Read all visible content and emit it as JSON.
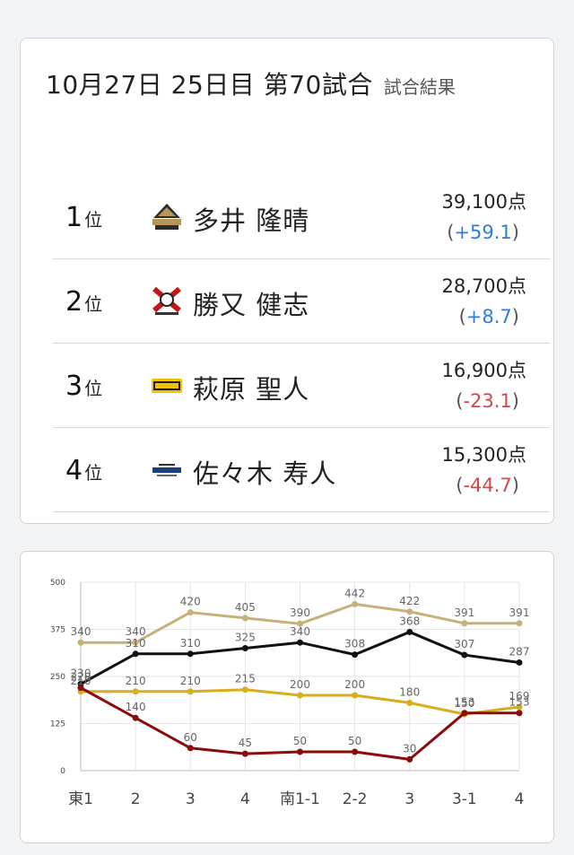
{
  "header": {
    "title": "10月27日  25日目  第70試合",
    "subtitle": "試合結果"
  },
  "rank_unit": "位",
  "results": [
    {
      "rank": "1",
      "name": "多井 隆晴",
      "points": "39,100点",
      "diff_open": "(",
      "diff": "+59.1",
      "diff_close": ")",
      "sign": "pos",
      "team_logo": "abemas-logo-icon"
    },
    {
      "rank": "2",
      "name": "勝又 健志",
      "points": "28,700点",
      "diff_open": "(",
      "diff": "+8.7",
      "diff_close": ")",
      "sign": "pos",
      "team_logo": "fu-rinkazan-logo-icon"
    },
    {
      "rank": "3",
      "name": "萩原 聖人",
      "points": "16,900点",
      "diff_open": "(",
      "diff": "-23.1",
      "diff_close": ")",
      "sign": "neg",
      "team_logo": "raiden-logo-icon"
    },
    {
      "rank": "4",
      "name": "佐々木 寿人",
      "points": "15,300点",
      "diff_open": "(",
      "diff": "-44.7",
      "diff_close": ")",
      "sign": "neg",
      "team_logo": "konami-logo-icon"
    }
  ],
  "chart_data": {
    "type": "line",
    "categories": [
      "東1",
      "2",
      "3",
      "4",
      "南1-1",
      "2-2",
      "3",
      "3-1",
      "4"
    ],
    "ylim": [
      0,
      500
    ],
    "yticks": [
      0,
      125,
      250,
      375,
      500
    ],
    "grid": true,
    "series": [
      {
        "color": "#c8b07a",
        "values": [
          340,
          340,
          420,
          405,
          390,
          442,
          422,
          391,
          391
        ]
      },
      {
        "color": "#111111",
        "values": [
          230,
          310,
          310,
          325,
          340,
          308,
          368,
          307,
          287
        ]
      },
      {
        "color": "#d9ad1c",
        "values": [
          210,
          210,
          210,
          215,
          200,
          200,
          180,
          150,
          169
        ]
      },
      {
        "color": "#8b0a0a",
        "values": [
          220,
          140,
          60,
          45,
          50,
          50,
          30,
          153,
          153
        ]
      }
    ]
  }
}
